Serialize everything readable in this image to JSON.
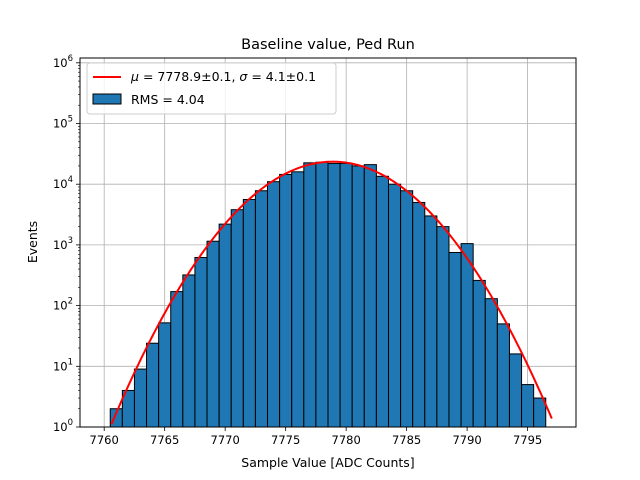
{
  "chart_data": {
    "type": "bar",
    "title": "Baseline value, Ped Run",
    "xlabel": "Sample Value [ADC Counts]",
    "ylabel": "Events",
    "xlim": [
      7758,
      7799
    ],
    "ylim": [
      1,
      1200000
    ],
    "yscale": "log",
    "grid": true,
    "legend_placement": "top-left",
    "x_ticks": [
      7760,
      7765,
      7770,
      7775,
      7780,
      7785,
      7790,
      7795
    ],
    "x_tick_labels": [
      "7760",
      "7765",
      "7770",
      "7775",
      "7780",
      "7785",
      "7790",
      "7795"
    ],
    "y_tick_labels": [
      {
        "base": "10",
        "exp": "0",
        "value": 1
      },
      {
        "base": "10",
        "exp": "1",
        "value": 10
      },
      {
        "base": "10",
        "exp": "2",
        "value": 100
      },
      {
        "base": "10",
        "exp": "3",
        "value": 1000
      },
      {
        "base": "10",
        "exp": "4",
        "value": 10000
      },
      {
        "base": "10",
        "exp": "5",
        "value": 100000
      },
      {
        "base": "10",
        "exp": "6",
        "value": 1000000
      }
    ],
    "bin_edges": [
      7760.5,
      7761.5,
      7762.5,
      7763.5,
      7764.5,
      7765.5,
      7766.5,
      7767.5,
      7768.5,
      7769.5,
      7770.5,
      7771.5,
      7772.5,
      7773.5,
      7774.5,
      7775.5,
      7776.5,
      7777.5,
      7778.5,
      7779.5,
      7780.5,
      7781.5,
      7782.5,
      7783.5,
      7784.5,
      7785.5,
      7786.5,
      7787.5,
      7788.5,
      7789.5,
      7790.5,
      7791.5,
      7792.5,
      7793.5,
      7794.5,
      7795.5,
      7796.5
    ],
    "counts": [
      2,
      4,
      9,
      24,
      52,
      170,
      320,
      620,
      1150,
      2200,
      3800,
      5600,
      7800,
      11000,
      14500,
      16000,
      22500,
      23000,
      22000,
      22000,
      20000,
      21000,
      13500,
      10000,
      7800,
      5000,
      3000,
      2000,
      750,
      1050,
      260,
      130,
      50,
      16,
      5,
      3
    ],
    "hist_color": "#1f77b4",
    "hist_label": "RMS = 4.04",
    "fit": {
      "type": "gaussian",
      "mu": 7778.9,
      "sigma": 4.1,
      "amplitude": 23500,
      "x_range": [
        7760.6,
        7797
      ],
      "color": "#ff0000",
      "label_text": "= 7778.9±0.1, ",
      "label_text2": "= 4.1±0.1",
      "label_mu_symbol": "μ",
      "label_sigma_symbol": "σ"
    }
  }
}
